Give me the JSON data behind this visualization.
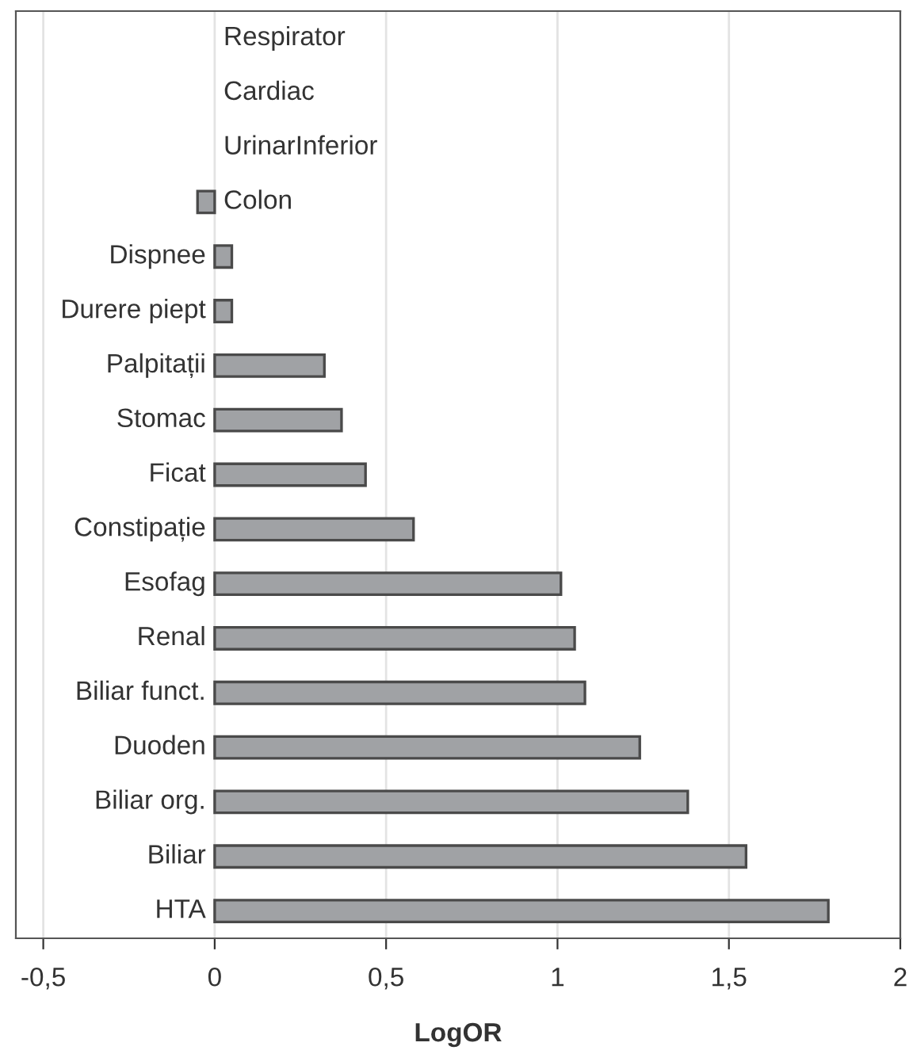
{
  "chart_data": {
    "type": "bar",
    "orientation": "horizontal",
    "xlabel": "LogOR",
    "categories": [
      "Respirator",
      "Cardiac",
      "UrinarInferior",
      "Colon",
      "Dispnee",
      "Durere piept",
      "Palpitații",
      "Stomac",
      "Ficat",
      "Constipație",
      "Esofag",
      "Renal",
      "Biliar funct.",
      "Duoden",
      "Biliar org.",
      "Biliar",
      "HTA"
    ],
    "values": [
      0,
      0,
      0,
      -0.05,
      0.05,
      0.05,
      0.32,
      0.37,
      0.44,
      0.58,
      1.01,
      1.05,
      1.08,
      1.24,
      1.38,
      1.55,
      1.79
    ],
    "color": "#a0a2a5",
    "xlim": [
      -0.58,
      2
    ],
    "xticks": [
      {
        "value": -0.5,
        "label": "-0,5"
      },
      0,
      {
        "value": 0.5,
        "label": "0,5"
      },
      1,
      {
        "value": 1.5,
        "label": "1,5"
      },
      2
    ],
    "grid": "x"
  }
}
